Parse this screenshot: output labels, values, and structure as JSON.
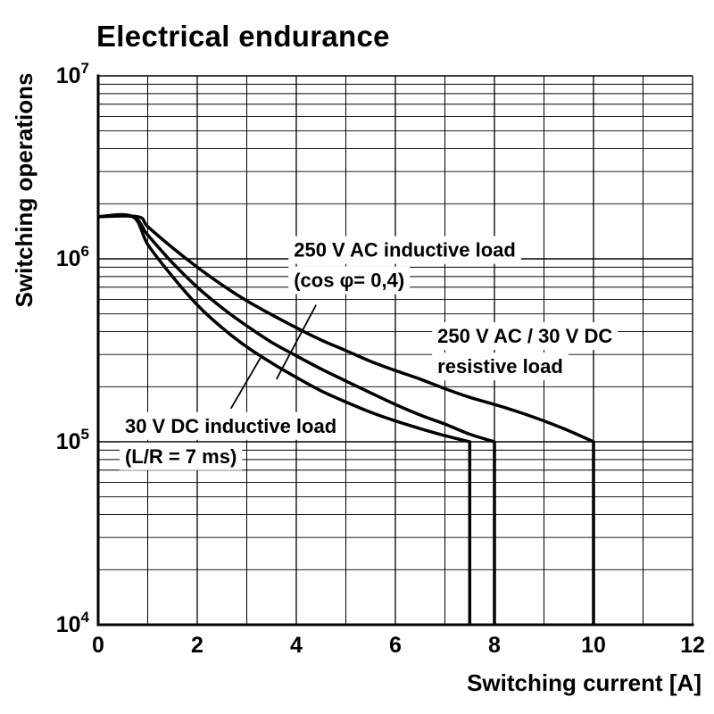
{
  "chart_data": {
    "type": "line",
    "title": "Electrical endurance",
    "xlabel": "Switching current [A]",
    "ylabel": "Switching operations",
    "xlim": [
      0,
      12
    ],
    "x_major_ticks": [
      0,
      2,
      4,
      6,
      8,
      10,
      12
    ],
    "x_grid_step": 1,
    "y_scale": "log",
    "ylim_exponents": [
      4,
      7
    ],
    "y_tick_labels": [
      {
        "base": "10",
        "exp": "4"
      },
      {
        "base": "10",
        "exp": "5"
      },
      {
        "base": "10",
        "exp": "6"
      },
      {
        "base": "10",
        "exp": "7"
      }
    ],
    "grid": true,
    "line_color": "#000000",
    "grid_color": "#000000",
    "background": "#ffffff",
    "series": [
      {
        "name": "250 V AC / 30 V DC resistive load",
        "max_current_a": 10,
        "points": [
          [
            0,
            1700000.0
          ],
          [
            0.8,
            1700000.0
          ],
          [
            1,
            1500000.0
          ],
          [
            1.5,
            1150000.0
          ],
          [
            2,
            900000.0
          ],
          [
            2.5,
            720000.0
          ],
          [
            3,
            590000.0
          ],
          [
            3.5,
            495000.0
          ],
          [
            4,
            420000.0
          ],
          [
            4.5,
            360000.0
          ],
          [
            5,
            315000.0
          ],
          [
            5.5,
            275000.0
          ],
          [
            6,
            245000.0
          ],
          [
            6.5,
            220000.0
          ],
          [
            7,
            195000.0
          ],
          [
            7.5,
            175000.0
          ],
          [
            8,
            160000.0
          ],
          [
            8.5,
            145000.0
          ],
          [
            9,
            130000.0
          ],
          [
            9.5,
            115000.0
          ],
          [
            10,
            100000.0
          ],
          [
            10,
            10000.0
          ]
        ]
      },
      {
        "name": "250 V AC inductive load (cos φ= 0,4)",
        "max_current_a": 8,
        "points": [
          [
            0,
            1700000.0
          ],
          [
            0.7,
            1700000.0
          ],
          [
            1,
            1350000.0
          ],
          [
            1.5,
            950000.0
          ],
          [
            2,
            700000.0
          ],
          [
            2.5,
            540000.0
          ],
          [
            3,
            430000.0
          ],
          [
            3.5,
            350000.0
          ],
          [
            4,
            295000.0
          ],
          [
            4.5,
            250000.0
          ],
          [
            5,
            215000.0
          ],
          [
            5.5,
            185000.0
          ],
          [
            6,
            160000.0
          ],
          [
            6.5,
            140000.0
          ],
          [
            7,
            125000.0
          ],
          [
            7.5,
            110000.0
          ],
          [
            8,
            100000.0
          ],
          [
            8,
            10000.0
          ]
        ]
      },
      {
        "name": "30 V DC inductive load (L/R = 7 ms)",
        "max_current_a": 7.5,
        "points": [
          [
            0,
            1700000.0
          ],
          [
            0.7,
            1700000.0
          ],
          [
            1,
            1200000.0
          ],
          [
            1.5,
            800000.0
          ],
          [
            2,
            560000.0
          ],
          [
            2.5,
            420000.0
          ],
          [
            3,
            330000.0
          ],
          [
            3.5,
            270000.0
          ],
          [
            4,
            225000.0
          ],
          [
            4.5,
            190000.0
          ],
          [
            5,
            165000.0
          ],
          [
            5.5,
            145000.0
          ],
          [
            6,
            130000.0
          ],
          [
            6.5,
            118000.0
          ],
          [
            7,
            108000.0
          ],
          [
            7.5,
            100000.0
          ],
          [
            7.5,
            10000.0
          ]
        ]
      }
    ],
    "annotations": [
      {
        "id": "ac-inductive-load",
        "lines": [
          "250 V AC inductive load",
          "(cos φ= 0,4)"
        ],
        "text_x": 3.95,
        "text_y": 1300000.0,
        "leader": [
          [
            4.4,
            560000.0
          ],
          [
            3.6,
            220000.0
          ]
        ]
      },
      {
        "id": "resistive-load",
        "lines": [
          "250 V AC / 30 V DC",
          "resistive load"
        ],
        "text_x": 6.85,
        "text_y": 440000.0,
        "leader": null
      },
      {
        "id": "dc-inductive-load",
        "lines": [
          "30 V DC inductive load",
          "(L/R = 7 ms)"
        ],
        "text_x": 0.54,
        "text_y": 142000.0,
        "leader": [
          [
            2.68,
            152000.0
          ],
          [
            3.3,
            295000.0
          ]
        ]
      }
    ]
  }
}
